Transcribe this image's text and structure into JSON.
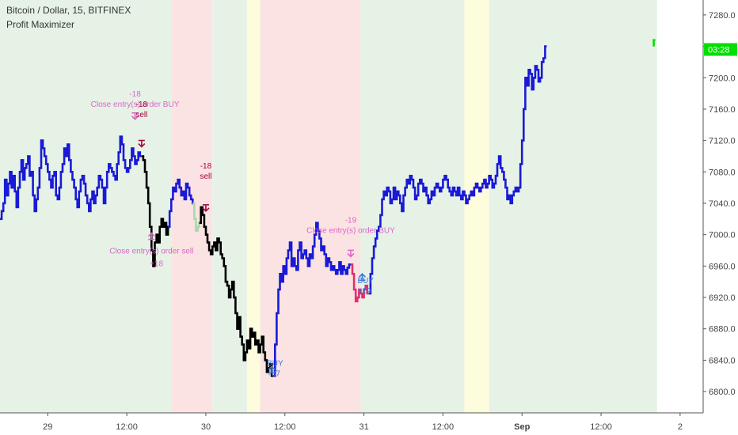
{
  "header": {
    "title": "Bitcoin / Dollar, 15, BITFINEX",
    "indicator": "Profit Maximizer"
  },
  "colors": {
    "bg_green": "#e6f2e6",
    "bg_red": "#fbe3e3",
    "bg_yellow": "#fdfcdc",
    "line_blue": "#1a1ad6",
    "line_black": "#000000",
    "line_pink": "#e0306e",
    "line_lightgreen": "#a9d9a9",
    "marker_magenta": "#d966c7",
    "marker_darkred": "#a8003c",
    "marker_blue": "#3a78d8",
    "price_tag": "#00e000"
  },
  "chart_data": {
    "type": "line",
    "ylim": [
      6785,
      7295
    ],
    "y_ticks": [
      6800,
      6840,
      6880,
      6920,
      6960,
      7000,
      7040,
      7080,
      7120,
      7160,
      7200,
      7240,
      7280
    ],
    "y_tick_labels": [
      "6800.0",
      "6840.0",
      "6880.0",
      "6920.0",
      "6960.0",
      "7000.0",
      "7040.0",
      "7080.0",
      "7120.0",
      "7160.0",
      "7200.0",
      "7240.0",
      "7280.0"
    ],
    "x_tick_labels": [
      "29",
      "12:00",
      "30",
      "12:00",
      "31",
      "12:00",
      "Sep",
      "12:00",
      "2"
    ],
    "x_tick_bars": [
      0,
      48,
      96,
      144,
      192,
      240,
      288,
      336,
      384
    ],
    "x_range_bars": [
      -29,
      398
    ],
    "current_price_label": "03:28",
    "current_price": 7236,
    "regimes": [
      {
        "start": -29,
        "end": 75,
        "state": "long"
      },
      {
        "start": 75,
        "end": 100,
        "state": "short"
      },
      {
        "start": 100,
        "end": 121,
        "state": "long"
      },
      {
        "start": 121,
        "end": 129,
        "state": "neutral"
      },
      {
        "start": 129,
        "end": 190,
        "state": "short"
      },
      {
        "start": 190,
        "end": 253,
        "state": "long"
      },
      {
        "start": 253,
        "end": 268,
        "state": "neutral"
      },
      {
        "start": 268,
        "end": 370,
        "state": "long"
      }
    ],
    "series": [
      {
        "color": "blue",
        "start": -29,
        "values": [
          7020,
          7030,
          7040,
          7070,
          7050,
          7065,
          7080,
          7060,
          7075,
          7055,
          7035,
          7060,
          7080,
          7095,
          7070,
          7085,
          7090,
          7100,
          7075,
          7080,
          7050,
          7030,
          7045,
          7060,
          7085,
          7120,
          7110,
          7100,
          7090,
          7080,
          7070,
          7060,
          7075,
          7080,
          7050,
          7045,
          7060,
          7080,
          7090,
          7110,
          7100,
          7115,
          7095,
          7080,
          7070,
          7060,
          7045,
          7035,
          7055,
          7070,
          7075,
          7065,
          7050,
          7040,
          7030,
          7045,
          7055,
          7040,
          7050,
          7060,
          7075,
          7070,
          7060,
          7040,
          7060,
          7080,
          7090,
          7085,
          7080,
          7075,
          7070,
          7090,
          7105,
          7125,
          7115,
          7095,
          7085,
          7080,
          7085,
          7095,
          7110,
          7100,
          7090,
          7095,
          7105,
          7100
        ]
      },
      {
        "color": "black",
        "start": 57,
        "values": [
          7100,
          7095,
          7080,
          7060,
          7040,
          7010,
          6980,
          6960,
          6990,
          7000,
          6990,
          7010,
          7020,
          7010,
          7015,
          7000,
          7010
        ]
      },
      {
        "color": "blue",
        "start": 73,
        "values": [
          7010,
          7030,
          7045,
          7060,
          7055,
          7065,
          7070,
          7060,
          7050,
          7055,
          7045,
          7065,
          7060,
          7050,
          7045,
          7040
        ]
      },
      {
        "color": "lightgreen",
        "start": 88,
        "values": [
          7040,
          7020,
          7005,
          7010,
          7015
        ]
      },
      {
        "color": "black",
        "start": 92,
        "values": [
          7015,
          7035,
          7025,
          7010,
          7000,
          6990,
          6980,
          6975,
          6985,
          6990,
          6980,
          6995,
          6990,
          6975,
          6970,
          6960,
          6940,
          6935,
          6920,
          6930,
          6940,
          6920,
          6900,
          6880,
          6895,
          6870,
          6860,
          6840,
          6850,
          6865,
          6855,
          6880,
          6870,
          6875,
          6860,
          6865,
          6850,
          6860,
          6870,
          6850,
          6840,
          6825,
          6830,
          6835,
          6820
        ]
      },
      {
        "color": "blue",
        "start": 137,
        "values": [
          6820,
          6860,
          6900,
          6930,
          6950,
          6940,
          6960,
          6950,
          6970,
          6980,
          6990,
          6960,
          6970,
          6960,
          6955,
          6980,
          6990,
          6970,
          6975,
          6980,
          6970,
          6960,
          6975,
          6970,
          6985,
          7000,
          7015,
          7005,
          6995,
          6980,
          6985,
          6975,
          6960,
          6970,
          6965,
          6955,
          6960,
          6955,
          6950,
          6955,
          6965,
          6950,
          6960,
          6955,
          6950,
          6958,
          6962
        ]
      },
      {
        "color": "pink",
        "start": 184,
        "values": [
          6962,
          6950,
          6930,
          6915,
          6920,
          6930,
          6925,
          6920,
          6930,
          6935,
          6925
        ]
      },
      {
        "color": "blue",
        "start": 195,
        "values": [
          6925,
          6950,
          6970,
          6985,
          6995,
          7005,
          7010,
          7025,
          7045,
          7055,
          7050,
          7060,
          7055,
          7040,
          7045,
          7060,
          7045,
          7055,
          7050,
          7040,
          7030,
          7050,
          7060,
          7070,
          7065,
          7075,
          7070,
          7060,
          7045,
          7050,
          7065,
          7070,
          7065,
          7055,
          7060,
          7050,
          7040,
          7045,
          7055,
          7050,
          7060,
          7065,
          7060,
          7055,
          7060,
          7070,
          7075,
          7070,
          7060,
          7055,
          7050,
          7060,
          7055,
          7050,
          7060,
          7050,
          7045,
          7055,
          7050,
          7040,
          7045,
          7050,
          7055,
          7050,
          7060,
          7065,
          7060,
          7055,
          7060,
          7065,
          7070,
          7060,
          7065,
          7075,
          7070,
          7060,
          7065,
          7075,
          7090,
          7100,
          7085,
          7080,
          7070,
          7060,
          7045,
          7050,
          7040,
          7050,
          7055,
          7060,
          7055,
          7060,
          7090,
          7120,
          7160,
          7200,
          7190,
          7210,
          7205,
          7185,
          7200,
          7215,
          7210,
          7195,
          7200,
          7220,
          7225,
          7240
        ]
      }
    ],
    "final_tick": {
      "start": 368,
      "value": 7240
    }
  },
  "annotations": [
    {
      "id": "a1",
      "lines": [
        "-18",
        "Close entry(s) order BUY"
      ],
      "color": "magenta",
      "bar": 53,
      "price": 7147,
      "dy": -16,
      "anchor": "middle",
      "arrow": "down",
      "arrow_price": 7147
    },
    {
      "id": "a2",
      "lines": [
        "-18",
        "sell"
      ],
      "color": "darkred",
      "bar": 57,
      "price": 7150,
      "dy": 0,
      "anchor": "middle",
      "arrow": "down",
      "arrow_price": 7112
    },
    {
      "id": "a3",
      "lines": [
        "Close entry(s) order sell"
      ],
      "color": "magenta",
      "bar": 63,
      "price": 6976,
      "dy": 0,
      "anchor": "middle",
      "arrow": "up",
      "arrow_price": 7002
    },
    {
      "id": "a4",
      "lines": [
        "+18"
      ],
      "color": "magenta",
      "bar": 66,
      "price": 6960,
      "dy": 0,
      "anchor": "middle",
      "arrow": "",
      "arrow_price": 0
    },
    {
      "id": "a5",
      "lines": [
        "-18",
        "sell"
      ],
      "color": "darkred",
      "bar": 96,
      "price": 7071,
      "dy": 0,
      "anchor": "middle",
      "arrow": "down",
      "arrow_price": 7030
    },
    {
      "id": "a6",
      "lines": [
        "-19",
        "Close entry(s) order BUY"
      ],
      "color": "magenta",
      "bar": 184,
      "price": 7000,
      "dy": -2,
      "anchor": "middle",
      "arrow": "down",
      "arrow_price": 6972
    },
    {
      "id": "a7",
      "lines": [
        "BUY",
        "+19"
      ],
      "color": "blue",
      "bar": 191,
      "price": 6925,
      "dy": 0,
      "anchor": "start",
      "arrow": "up",
      "arrow_price": 6950
    },
    {
      "id": "a8",
      "lines": [
        "BUY",
        "+37"
      ],
      "color": "blue",
      "bar": 136,
      "price": 6820,
      "dy": 0,
      "anchor": "start",
      "arrow": "up",
      "arrow_price": 6832
    }
  ]
}
